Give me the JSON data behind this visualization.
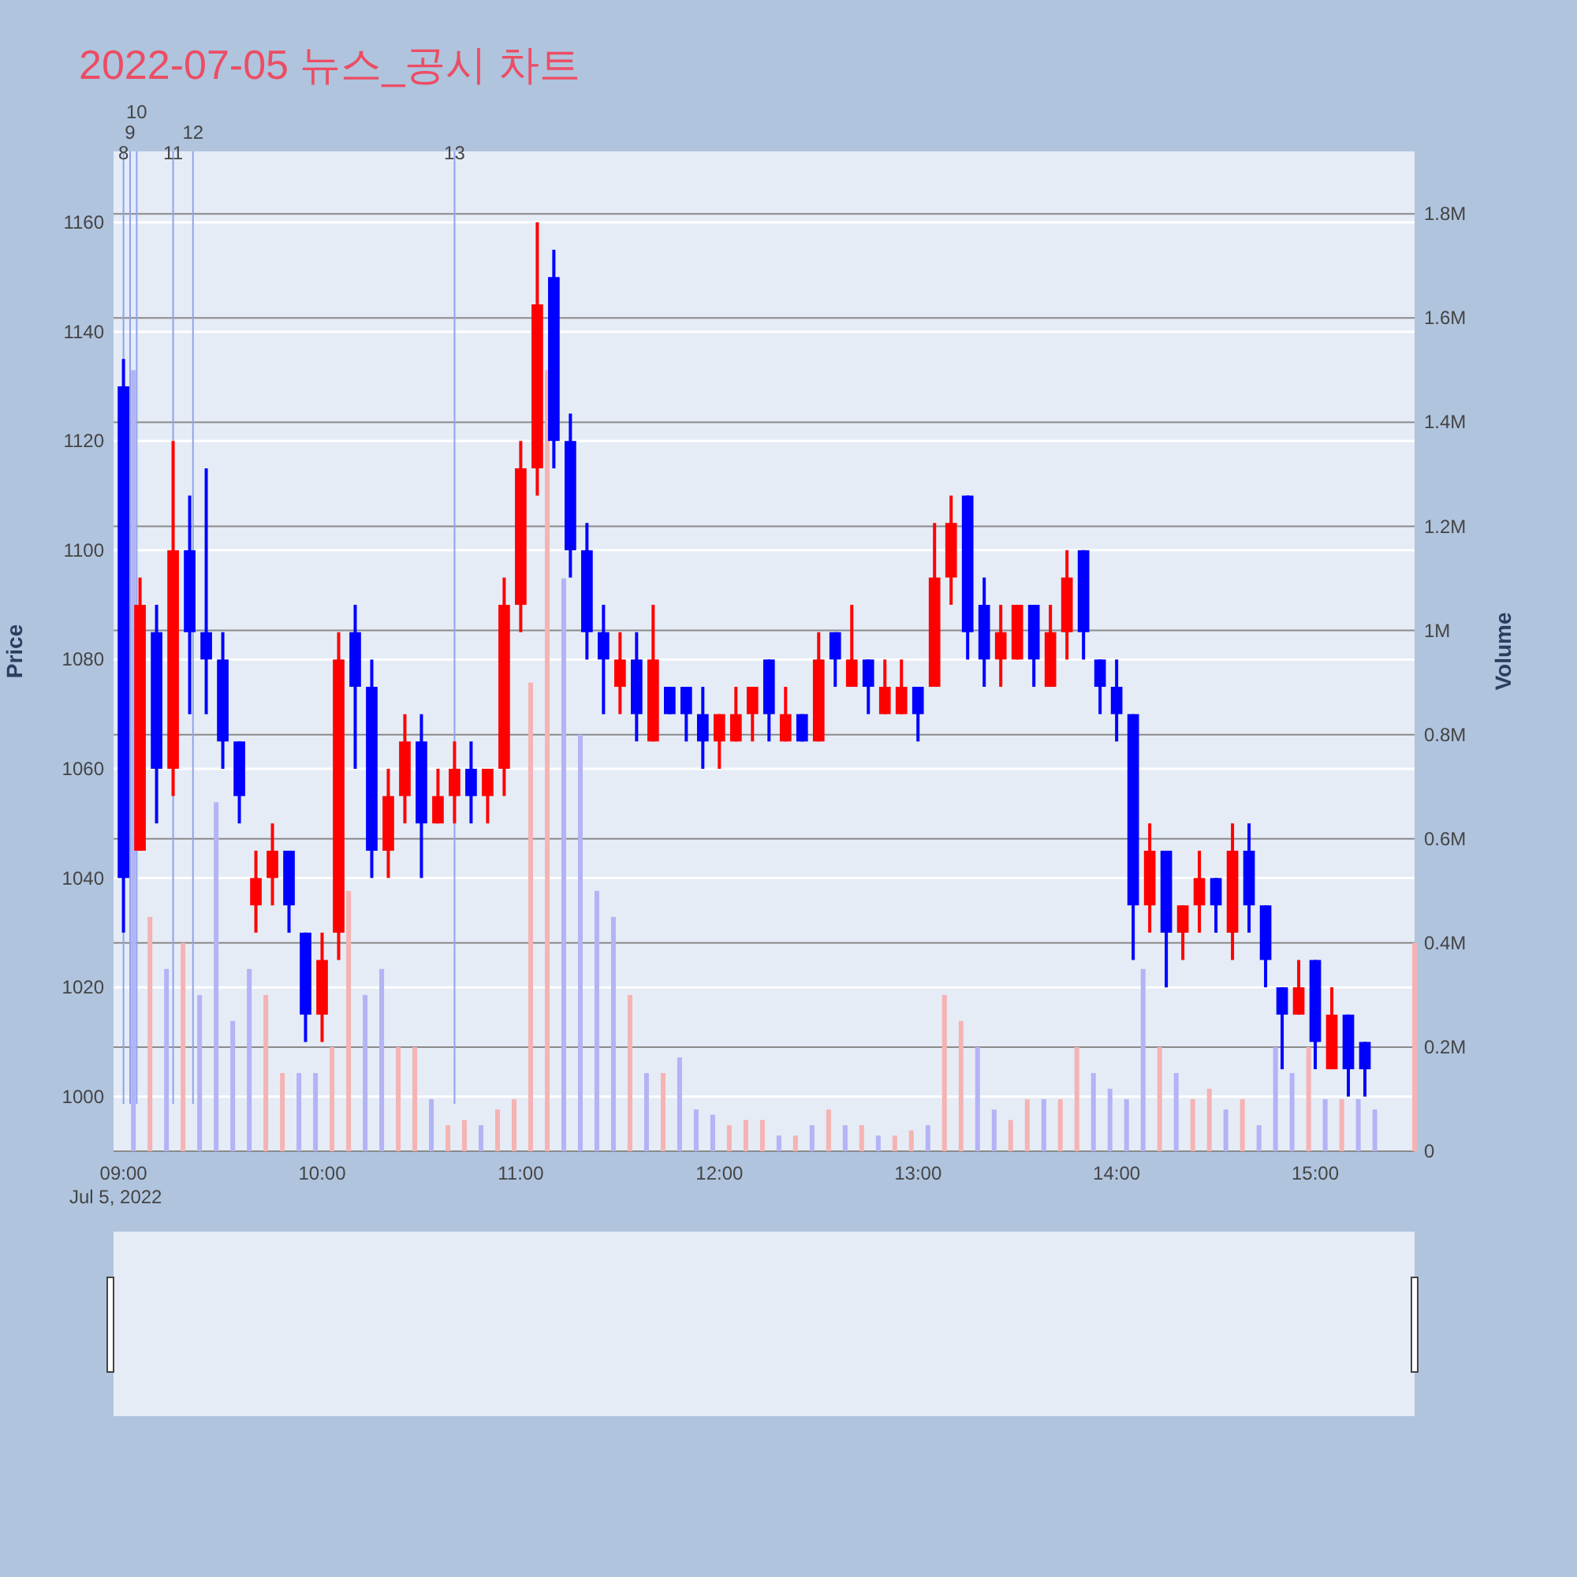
{
  "chart_data": {
    "type": "candlestick",
    "title": "2022-07-05 뉴스_공시 차트",
    "ylabel": "Price",
    "y2label": "Volume",
    "grid": true,
    "x": [
      "2022-07-05T09:00",
      "2022-07-05T09:05",
      "2022-07-05T09:10",
      "2022-07-05T09:15",
      "2022-07-05T09:20",
      "2022-07-05T09:25",
      "2022-07-05T09:30",
      "2022-07-05T09:35",
      "2022-07-05T09:40",
      "2022-07-05T09:45",
      "2022-07-05T09:50",
      "2022-07-05T09:55",
      "2022-07-05T10:00",
      "2022-07-05T10:05",
      "2022-07-05T10:10",
      "2022-07-05T10:15",
      "2022-07-05T10:20",
      "2022-07-05T10:25",
      "2022-07-05T10:30",
      "2022-07-05T10:35",
      "2022-07-05T10:40",
      "2022-07-05T10:45",
      "2022-07-05T10:50",
      "2022-07-05T10:55",
      "2022-07-05T11:00",
      "2022-07-05T11:05",
      "2022-07-05T11:10",
      "2022-07-05T11:15",
      "2022-07-05T11:20",
      "2022-07-05T11:25",
      "2022-07-05T11:30",
      "2022-07-05T11:35",
      "2022-07-05T11:40",
      "2022-07-05T11:45",
      "2022-07-05T11:50",
      "2022-07-05T11:55",
      "2022-07-05T12:00",
      "2022-07-05T12:05",
      "2022-07-05T12:10",
      "2022-07-05T12:15",
      "2022-07-05T12:20",
      "2022-07-05T12:25",
      "2022-07-05T12:30",
      "2022-07-05T12:35",
      "2022-07-05T12:40",
      "2022-07-05T12:45",
      "2022-07-05T12:50",
      "2022-07-05T12:55",
      "2022-07-05T13:00",
      "2022-07-05T13:05",
      "2022-07-05T13:10",
      "2022-07-05T13:15",
      "2022-07-05T13:20",
      "2022-07-05T13:25",
      "2022-07-05T13:30",
      "2022-07-05T13:35",
      "2022-07-05T13:40",
      "2022-07-05T13:45",
      "2022-07-05T13:50",
      "2022-07-05T13:55",
      "2022-07-05T14:00",
      "2022-07-05T14:05",
      "2022-07-05T14:10",
      "2022-07-05T14:15",
      "2022-07-05T14:20",
      "2022-07-05T14:25",
      "2022-07-05T14:30",
      "2022-07-05T14:35",
      "2022-07-05T14:40",
      "2022-07-05T14:45",
      "2022-07-05T14:50",
      "2022-07-05T14:55",
      "2022-07-05T15:00",
      "2022-07-05T15:05",
      "2022-07-05T15:10",
      "2022-07-05T15:15"
    ],
    "ohlc": [
      [
        1130,
        1135,
        1030,
        1040
      ],
      [
        1045,
        1095,
        1045,
        1090
      ],
      [
        1085,
        1090,
        1050,
        1060
      ],
      [
        1060,
        1120,
        1055,
        1100
      ],
      [
        1100,
        1110,
        1070,
        1085
      ],
      [
        1085,
        1115,
        1070,
        1080
      ],
      [
        1080,
        1085,
        1060,
        1065
      ],
      [
        1065,
        1065,
        1050,
        1055
      ],
      [
        1035,
        1045,
        1030,
        1040
      ],
      [
        1040,
        1050,
        1035,
        1045
      ],
      [
        1045,
        1045,
        1030,
        1035
      ],
      [
        1030,
        1030,
        1010,
        1015
      ],
      [
        1015,
        1030,
        1010,
        1025
      ],
      [
        1030,
        1085,
        1025,
        1080
      ],
      [
        1085,
        1090,
        1060,
        1075
      ],
      [
        1075,
        1080,
        1040,
        1045
      ],
      [
        1045,
        1060,
        1040,
        1055
      ],
      [
        1055,
        1070,
        1050,
        1065
      ],
      [
        1065,
        1070,
        1040,
        1050
      ],
      [
        1050,
        1060,
        1050,
        1055
      ],
      [
        1055,
        1065,
        1050,
        1060
      ],
      [
        1060,
        1065,
        1050,
        1055
      ],
      [
        1055,
        1060,
        1050,
        1060
      ],
      [
        1060,
        1095,
        1055,
        1090
      ],
      [
        1090,
        1120,
        1085,
        1115
      ],
      [
        1115,
        1160,
        1110,
        1145
      ],
      [
        1150,
        1155,
        1115,
        1120
      ],
      [
        1120,
        1125,
        1095,
        1100
      ],
      [
        1100,
        1105,
        1080,
        1085
      ],
      [
        1085,
        1090,
        1070,
        1080
      ],
      [
        1075,
        1085,
        1070,
        1080
      ],
      [
        1080,
        1085,
        1065,
        1070
      ],
      [
        1065,
        1090,
        1065,
        1080
      ],
      [
        1075,
        1075,
        1070,
        1070
      ],
      [
        1075,
        1075,
        1065,
        1070
      ],
      [
        1070,
        1075,
        1060,
        1065
      ],
      [
        1065,
        1070,
        1060,
        1070
      ],
      [
        1065,
        1075,
        1065,
        1070
      ],
      [
        1070,
        1075,
        1065,
        1075
      ],
      [
        1080,
        1080,
        1065,
        1070
      ],
      [
        1065,
        1075,
        1065,
        1070
      ],
      [
        1070,
        1070,
        1065,
        1065
      ],
      [
        1065,
        1085,
        1065,
        1080
      ],
      [
        1085,
        1085,
        1075,
        1080
      ],
      [
        1075,
        1090,
        1075,
        1080
      ],
      [
        1080,
        1080,
        1070,
        1075
      ],
      [
        1070,
        1080,
        1070,
        1075
      ],
      [
        1070,
        1080,
        1070,
        1075
      ],
      [
        1075,
        1075,
        1065,
        1070
      ],
      [
        1075,
        1105,
        1075,
        1095
      ],
      [
        1095,
        1110,
        1090,
        1105
      ],
      [
        1110,
        1110,
        1080,
        1085
      ],
      [
        1090,
        1095,
        1075,
        1080
      ],
      [
        1080,
        1090,
        1075,
        1085
      ],
      [
        1080,
        1090,
        1080,
        1090
      ],
      [
        1090,
        1090,
        1075,
        1080
      ],
      [
        1075,
        1090,
        1075,
        1085
      ],
      [
        1085,
        1100,
        1080,
        1095
      ],
      [
        1100,
        1100,
        1080,
        1085
      ],
      [
        1080,
        1080,
        1070,
        1075
      ],
      [
        1075,
        1080,
        1065,
        1070
      ],
      [
        1070,
        1070,
        1025,
        1035
      ],
      [
        1035,
        1050,
        1030,
        1045
      ],
      [
        1045,
        1045,
        1020,
        1030
      ],
      [
        1030,
        1035,
        1025,
        1035
      ],
      [
        1035,
        1045,
        1030,
        1040
      ],
      [
        1040,
        1040,
        1030,
        1035
      ],
      [
        1030,
        1050,
        1025,
        1045
      ],
      [
        1045,
        1050,
        1030,
        1035
      ],
      [
        1035,
        1035,
        1020,
        1025
      ],
      [
        1020,
        1020,
        1005,
        1015
      ],
      [
        1015,
        1025,
        1015,
        1020
      ],
      [
        1025,
        1025,
        1005,
        1010
      ],
      [
        1005,
        1020,
        1005,
        1015
      ],
      [
        1015,
        1015,
        1000,
        1005
      ],
      [
        1010,
        1010,
        1000,
        1005
      ]
    ],
    "series": [
      {
        "type": "bar",
        "axis": "y2",
        "x": [
          "2022-07-05T09:03",
          "2022-07-05T09:08",
          "2022-07-05T09:13",
          "2022-07-05T09:18",
          "2022-07-05T09:23",
          "2022-07-05T09:28",
          "2022-07-05T09:33",
          "2022-07-05T09:38",
          "2022-07-05T09:43",
          "2022-07-05T09:48",
          "2022-07-05T09:53",
          "2022-07-05T09:58",
          "2022-07-05T10:03",
          "2022-07-05T10:08",
          "2022-07-05T10:13",
          "2022-07-05T10:18",
          "2022-07-05T10:23",
          "2022-07-05T10:28",
          "2022-07-05T10:33",
          "2022-07-05T10:38",
          "2022-07-05T10:43",
          "2022-07-05T10:48",
          "2022-07-05T10:53",
          "2022-07-05T10:58",
          "2022-07-05T11:03",
          "2022-07-05T11:08",
          "2022-07-05T11:13",
          "2022-07-05T11:18",
          "2022-07-05T11:23",
          "2022-07-05T11:28",
          "2022-07-05T11:33",
          "2022-07-05T11:38",
          "2022-07-05T11:43",
          "2022-07-05T11:48",
          "2022-07-05T11:53",
          "2022-07-05T11:58",
          "2022-07-05T12:03",
          "2022-07-05T12:08",
          "2022-07-05T12:13",
          "2022-07-05T12:18",
          "2022-07-05T12:23",
          "2022-07-05T12:28",
          "2022-07-05T12:33",
          "2022-07-05T12:38",
          "2022-07-05T12:43",
          "2022-07-05T12:48",
          "2022-07-05T12:53",
          "2022-07-05T12:58",
          "2022-07-05T13:03",
          "2022-07-05T13:08",
          "2022-07-05T13:13",
          "2022-07-05T13:18",
          "2022-07-05T13:23",
          "2022-07-05T13:28",
          "2022-07-05T13:33",
          "2022-07-05T13:38",
          "2022-07-05T13:43",
          "2022-07-05T13:48",
          "2022-07-05T13:53",
          "2022-07-05T13:58",
          "2022-07-05T14:03",
          "2022-07-05T14:08",
          "2022-07-05T14:13",
          "2022-07-05T14:18",
          "2022-07-05T14:23",
          "2022-07-05T14:28",
          "2022-07-05T14:33",
          "2022-07-05T14:38",
          "2022-07-05T14:43",
          "2022-07-05T14:48",
          "2022-07-05T14:53",
          "2022-07-05T14:58",
          "2022-07-05T15:03",
          "2022-07-05T15:08",
          "2022-07-05T15:13",
          "2022-07-05T15:18",
          "2022-07-05T15:30"
        ],
        "values": [
          1500000,
          450000,
          350000,
          400000,
          300000,
          670000,
          250000,
          350000,
          300000,
          150000,
          150000,
          150000,
          200000,
          500000,
          300000,
          350000,
          200000,
          200000,
          100000,
          50000,
          60000,
          50000,
          80000,
          100000,
          900000,
          1500000,
          1100000,
          800000,
          500000,
          450000,
          300000,
          150000,
          150000,
          180000,
          80000,
          70000,
          50000,
          60000,
          60000,
          30000,
          30000,
          50000,
          80000,
          50000,
          50000,
          30000,
          30000,
          40000,
          50000,
          300000,
          250000,
          200000,
          80000,
          60000,
          100000,
          100000,
          100000,
          200000,
          150000,
          120000,
          100000,
          350000,
          200000,
          150000,
          100000,
          120000,
          80000,
          100000,
          50000,
          200000,
          150000,
          200000,
          100000,
          100000,
          100000,
          80000,
          400000
        ],
        "colors": [
          "#b3b3f5",
          "#f5b3b3",
          "#b3b3f5",
          "#f5b3b3",
          "#b3b3f5",
          "#b3b3f5",
          "#b3b3f5",
          "#b3b3f5",
          "#f5b3b3",
          "#f5b3b3",
          "#b3b3f5",
          "#b3b3f5",
          "#f5b3b3",
          "#f5b3b3",
          "#b3b3f5",
          "#b3b3f5",
          "#f5b3b3",
          "#f5b3b3",
          "#b3b3f5",
          "#f5b3b3",
          "#f5b3b3",
          "#b3b3f5",
          "#f5b3b3",
          "#f5b3b3",
          "#f5b3b3",
          "#f5b3b3",
          "#b3b3f5",
          "#b3b3f5",
          "#b3b3f5",
          "#b3b3f5",
          "#f5b3b3",
          "#b3b3f5",
          "#f5b3b3",
          "#b3b3f5",
          "#b3b3f5",
          "#b3b3f5",
          "#f5b3b3",
          "#f5b3b3",
          "#f5b3b3",
          "#b3b3f5",
          "#f5b3b3",
          "#b3b3f5",
          "#f5b3b3",
          "#b3b3f5",
          "#f5b3b3",
          "#b3b3f5",
          "#f5b3b3",
          "#f5b3b3",
          "#b3b3f5",
          "#f5b3b3",
          "#f5b3b3",
          "#b3b3f5",
          "#b3b3f5",
          "#f5b3b3",
          "#f5b3b3",
          "#b3b3f5",
          "#f5b3b3",
          "#f5b3b3",
          "#b3b3f5",
          "#b3b3f5",
          "#b3b3f5",
          "#b3b3f5",
          "#f5b3b3",
          "#b3b3f5",
          "#f5b3b3",
          "#f5b3b3",
          "#b3b3f5",
          "#f5b3b3",
          "#b3b3f5",
          "#b3b3f5",
          "#b3b3f5",
          "#f5b3b3",
          "#b3b3f5",
          "#f5b3b3",
          "#b3b3f5",
          "#b3b3f5",
          "#f5b3b3"
        ]
      }
    ],
    "xlim": [
      "2022-07-05T08:57",
      "2022-07-05T15:30"
    ],
    "xticks": [
      {
        "value": "2022-07-05T09:00",
        "label": "09:00"
      },
      {
        "value": "2022-07-05T10:00",
        "label": "10:00"
      },
      {
        "value": "2022-07-05T11:00",
        "label": "11:00"
      },
      {
        "value": "2022-07-05T12:00",
        "label": "12:00"
      },
      {
        "value": "2022-07-05T13:00",
        "label": "13:00"
      },
      {
        "value": "2022-07-05T14:00",
        "label": "14:00"
      },
      {
        "value": "2022-07-05T15:00",
        "label": "15:00"
      }
    ],
    "annotations": [
      "Jul 5, 2022"
    ],
    "ylim": [
      990,
      1173
    ],
    "yticks": [
      1000,
      1020,
      1040,
      1060,
      1080,
      1100,
      1120,
      1140,
      1160
    ],
    "y2lim": [
      0,
      1920000
    ],
    "y2ticks": [
      0,
      {
        "value": 200000,
        "label": "0.2M"
      },
      {
        "value": 400000,
        "label": "0.4M"
      },
      {
        "value": 600000,
        "label": "0.6M"
      },
      {
        "value": 800000,
        "label": "0.8M"
      },
      {
        "value": 1000000,
        "label": "1M"
      },
      {
        "value": 1200000,
        "label": "1.2M"
      },
      {
        "value": 1400000,
        "label": "1.4M"
      },
      {
        "value": 1600000,
        "label": "1.6M"
      },
      {
        "value": 1800000,
        "label": "1.8M"
      }
    ],
    "ref_lines": [
      {
        "axis": "x",
        "value": "2022-07-05T09:00",
        "label": "8",
        "color": "#8fa3ee"
      },
      {
        "axis": "x",
        "value": "2022-07-05T09:02",
        "label": "9",
        "color": "#8fa3ee"
      },
      {
        "axis": "x",
        "value": "2022-07-05T09:04",
        "label": "10",
        "color": "#8fa3ee"
      },
      {
        "axis": "x",
        "value": "2022-07-05T09:15",
        "label": "11",
        "color": "#8fa3ee"
      },
      {
        "axis": "x",
        "value": "2022-07-05T09:21",
        "label": "12",
        "color": "#8fa3ee"
      },
      {
        "axis": "x",
        "value": "2022-07-05T10:40",
        "label": "13",
        "color": "#8fa3ee"
      }
    ]
  }
}
